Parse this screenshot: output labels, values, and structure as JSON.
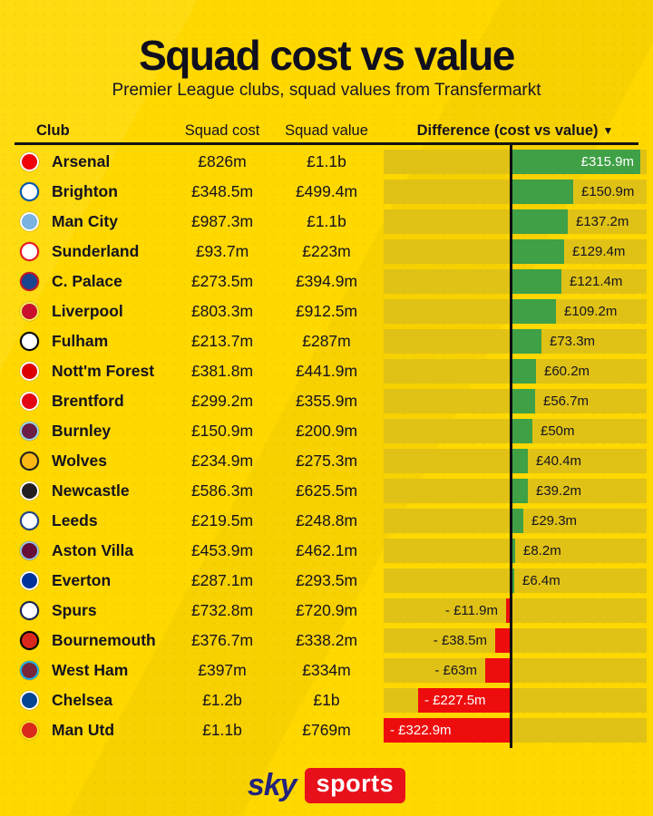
{
  "title": "Squad cost vs value",
  "subtitle": "Premier League clubs, squad values from Transfermarkt",
  "columns": {
    "club": "Club",
    "cost": "Squad cost",
    "value": "Squad value",
    "difference": "Difference (cost vs value)",
    "sort_icon": "▼"
  },
  "colors": {
    "background": "#ffd800",
    "track": "#e0c216",
    "positive": "#3fa046",
    "negative": "#ee0d0d",
    "zero_line": "#0e0e0e",
    "text": "#14121f",
    "sky_blue": "#23237d",
    "sports_red": "#e8101b"
  },
  "rows": [
    {
      "club": "Arsenal",
      "cost": "£826m",
      "value": "£1.1b",
      "difference_label": "£315.9m",
      "difference_m": 315.9,
      "crest": {
        "bg": "#ef0107",
        "ring": "#ffffff"
      }
    },
    {
      "club": "Brighton",
      "cost": "£348.5m",
      "value": "£499.4m",
      "difference_label": "£150.9m",
      "difference_m": 150.9,
      "crest": {
        "bg": "#ffffff",
        "ring": "#0057b8"
      }
    },
    {
      "club": "Man City",
      "cost": "£987.3m",
      "value": "£1.1b",
      "difference_label": "£137.2m",
      "difference_m": 137.2,
      "crest": {
        "bg": "#7ab2e1",
        "ring": "#ffffff"
      }
    },
    {
      "club": "Sunderland",
      "cost": "£93.7m",
      "value": "£223m",
      "difference_label": "£129.4m",
      "difference_m": 129.4,
      "crest": {
        "bg": "#ffffff",
        "ring": "#eb172b"
      }
    },
    {
      "club": "C. Palace",
      "cost": "£273.5m",
      "value": "£394.9m",
      "difference_label": "£121.4m",
      "difference_m": 121.4,
      "crest": {
        "bg": "#1b458f",
        "ring": "#c4122e"
      }
    },
    {
      "club": "Liverpool",
      "cost": "£803.3m",
      "value": "£912.5m",
      "difference_label": "£109.2m",
      "difference_m": 109.2,
      "crest": {
        "bg": "#c8102e",
        "ring": "#f6eb61"
      }
    },
    {
      "club": "Fulham",
      "cost": "£213.7m",
      "value": "£287m",
      "difference_label": "£73.3m",
      "difference_m": 73.3,
      "crest": {
        "bg": "#ffffff",
        "ring": "#000000"
      }
    },
    {
      "club": "Nott'm Forest",
      "cost": "£381.8m",
      "value": "£441.9m",
      "difference_label": "£60.2m",
      "difference_m": 60.2,
      "crest": {
        "bg": "#dd0000",
        "ring": "#ffffff"
      }
    },
    {
      "club": "Brentford",
      "cost": "£299.2m",
      "value": "£355.9m",
      "difference_label": "£56.7m",
      "difference_m": 56.7,
      "crest": {
        "bg": "#e30613",
        "ring": "#ffffff"
      }
    },
    {
      "club": "Burnley",
      "cost": "£150.9m",
      "value": "£200.9m",
      "difference_label": "£50m",
      "difference_m": 50,
      "crest": {
        "bg": "#6c1d45",
        "ring": "#99d6ea"
      }
    },
    {
      "club": "Wolves",
      "cost": "£234.9m",
      "value": "£275.3m",
      "difference_label": "£40.4m",
      "difference_m": 40.4,
      "crest": {
        "bg": "#fdb913",
        "ring": "#231f20"
      }
    },
    {
      "club": "Newcastle",
      "cost": "£586.3m",
      "value": "£625.5m",
      "difference_label": "£39.2m",
      "difference_m": 39.2,
      "crest": {
        "bg": "#241f20",
        "ring": "#ffffff"
      }
    },
    {
      "club": "Leeds",
      "cost": "£219.5m",
      "value": "£248.8m",
      "difference_label": "£29.3m",
      "difference_m": 29.3,
      "crest": {
        "bg": "#ffffff",
        "ring": "#1d428a"
      }
    },
    {
      "club": "Aston Villa",
      "cost": "£453.9m",
      "value": "£462.1m",
      "difference_label": "£8.2m",
      "difference_m": 8.2,
      "crest": {
        "bg": "#670e36",
        "ring": "#94bfe5"
      }
    },
    {
      "club": "Everton",
      "cost": "£287.1m",
      "value": "£293.5m",
      "difference_label": "£6.4m",
      "difference_m": 6.4,
      "crest": {
        "bg": "#003399",
        "ring": "#ffffff"
      }
    },
    {
      "club": "Spurs",
      "cost": "£732.8m",
      "value": "£720.9m",
      "difference_label": "- £11.9m",
      "difference_m": -11.9,
      "crest": {
        "bg": "#ffffff",
        "ring": "#132257"
      }
    },
    {
      "club": "Bournemouth",
      "cost": "£376.7m",
      "value": "£338.2m",
      "difference_label": "- £38.5m",
      "difference_m": -38.5,
      "crest": {
        "bg": "#da291c",
        "ring": "#000000"
      }
    },
    {
      "club": "West Ham",
      "cost": "£397m",
      "value": "£334m",
      "difference_label": "- £63m",
      "difference_m": -63,
      "crest": {
        "bg": "#7a263a",
        "ring": "#1bb1e7"
      }
    },
    {
      "club": "Chelsea",
      "cost": "£1.2b",
      "value": "£1b",
      "difference_label": "- £227.5m",
      "difference_m": -227.5,
      "crest": {
        "bg": "#034694",
        "ring": "#ffffff"
      }
    },
    {
      "club": "Man Utd",
      "cost": "£1.1b",
      "value": "£769m",
      "difference_label": "- £322.9m",
      "difference_m": -322.9,
      "crest": {
        "bg": "#da291c",
        "ring": "#fbe122"
      }
    }
  ],
  "footer": {
    "sky": "sky",
    "sports": "sports"
  },
  "chart_data": {
    "type": "bar",
    "title": "Squad cost vs value",
    "subtitle": "Premier League clubs, squad values from Transfermarkt",
    "orientation": "horizontal",
    "categories": [
      "Arsenal",
      "Brighton",
      "Man City",
      "Sunderland",
      "C. Palace",
      "Liverpool",
      "Fulham",
      "Nott'm Forest",
      "Brentford",
      "Burnley",
      "Wolves",
      "Newcastle",
      "Leeds",
      "Aston Villa",
      "Everton",
      "Spurs",
      "Bournemouth",
      "West Ham",
      "Chelsea",
      "Man Utd"
    ],
    "series": [
      {
        "name": "Squad cost (£m)",
        "values": [
          826,
          348.5,
          987.3,
          93.7,
          273.5,
          803.3,
          213.7,
          381.8,
          299.2,
          150.9,
          234.9,
          586.3,
          219.5,
          453.9,
          287.1,
          732.8,
          376.7,
          397,
          1200,
          1100
        ]
      },
      {
        "name": "Squad value (£m)",
        "values": [
          1100,
          499.4,
          1100,
          223,
          394.9,
          912.5,
          287,
          441.9,
          355.9,
          200.9,
          275.3,
          625.5,
          248.8,
          462.1,
          293.5,
          720.9,
          338.2,
          334,
          1000,
          769
        ]
      },
      {
        "name": "Difference (£m)",
        "values": [
          315.9,
          150.9,
          137.2,
          129.4,
          121.4,
          109.2,
          73.3,
          60.2,
          56.7,
          50,
          40.4,
          39.2,
          29.3,
          8.2,
          6.4,
          -11.9,
          -38.5,
          -63,
          -227.5,
          -322.9
        ]
      }
    ],
    "xlabel": "Difference (cost vs value)",
    "ylabel": "Club",
    "xlim": [
      -322.9,
      315.9
    ],
    "grid": false,
    "legend_position": "none",
    "sort": "difference descending",
    "positive_color": "#3fa046",
    "negative_color": "#ee0d0d"
  }
}
